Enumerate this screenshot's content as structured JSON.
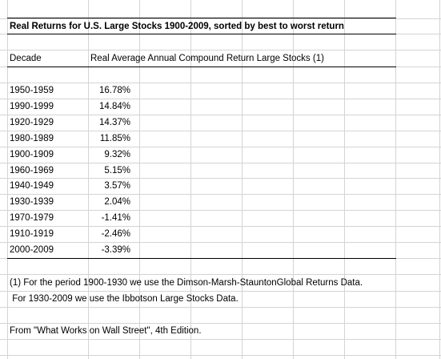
{
  "title": "Real Returns for U.S. Large Stocks 1900-2009, sorted by best to worst return",
  "header": {
    "decade": "Decade",
    "return": "Real Average Annual Compound Return Large Stocks (1)"
  },
  "rows": [
    {
      "decade": "1950-1959",
      "value": "16.78%"
    },
    {
      "decade": "1990-1999",
      "value": "14.84%"
    },
    {
      "decade": "1920-1929",
      "value": "14.37%"
    },
    {
      "decade": "1980-1989",
      "value": "11.85%"
    },
    {
      "decade": "1900-1909",
      "value": "9.32%"
    },
    {
      "decade": "1960-1969",
      "value": "5.15%"
    },
    {
      "decade": "1940-1949",
      "value": "3.57%"
    },
    {
      "decade": "1930-1939",
      "value": "2.04%"
    },
    {
      "decade": "1970-1979",
      "value": "-1.41%"
    },
    {
      "decade": "1910-1919",
      "value": "-2.46%"
    },
    {
      "decade": "2000-2009",
      "value": "-3.39%"
    }
  ],
  "notes": {
    "note1": "(1) For the period 1900-1930 we use the Dimson-Marsh-StauntonGlobal Returns Data.",
    "note2": " For 1930-2009 we use the Ibbotson Large Stocks Data.",
    "source": "From \"What Works on Wall Street\", 4th Edition."
  }
}
